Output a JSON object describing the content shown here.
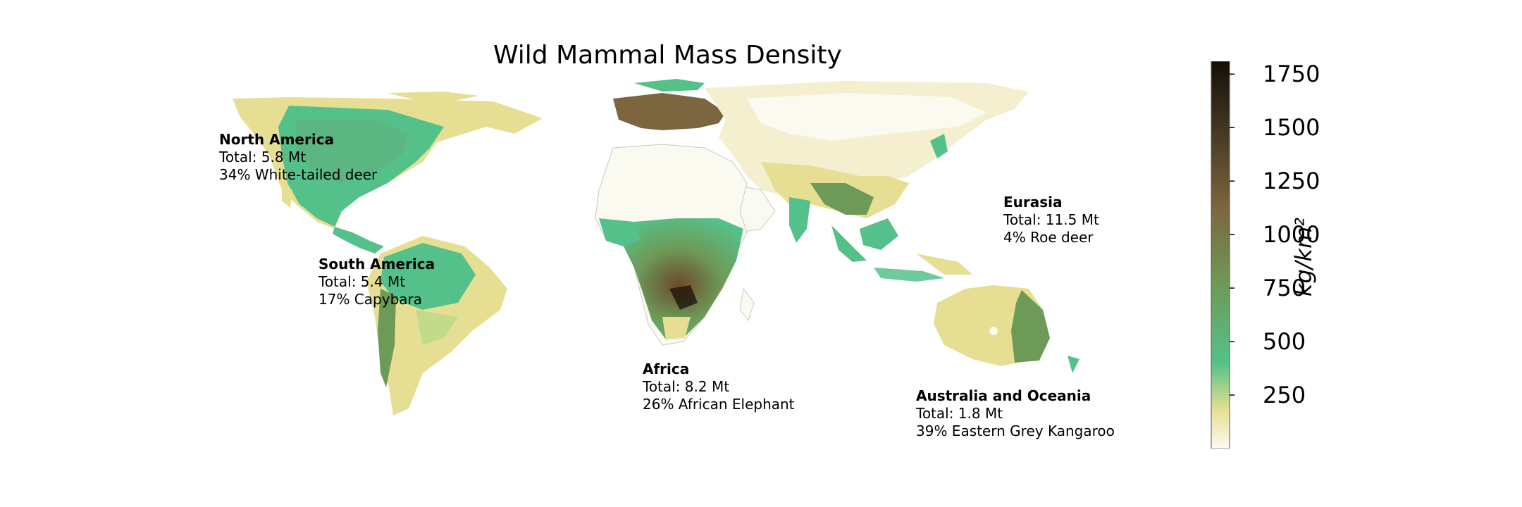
{
  "title": "Wild Mammal Mass Density",
  "colors": {
    "scale": [
      "#fbfaf0",
      "#e6df93",
      "#55c18a",
      "#6e9a58",
      "#7c6640",
      "#140f08"
    ],
    "land_base": "#f7f4e0",
    "ocean": "#ffffff",
    "coastline": "#9a9a9a"
  },
  "regions": [
    {
      "name": "North America",
      "total": "Total: 5.8 Mt",
      "species": "34% White-tailed deer"
    },
    {
      "name": "South America",
      "total": "Total: 5.4 Mt",
      "species": "17% Capybara"
    },
    {
      "name": "Africa",
      "total": "Total: 8.2 Mt",
      "species": "26% African Elephant"
    },
    {
      "name": "Eurasia",
      "total": "Total: 11.5 Mt",
      "species": "4% Roe deer"
    },
    {
      "name": "Australia and Oceania",
      "total": "Total: 1.8 Mt",
      "species": "39% Eastern Grey Kangaroo"
    }
  ],
  "colorbar": {
    "label": "kg/km²",
    "min": 0,
    "max": 1810,
    "ticks": [
      {
        "value": 250,
        "label": "250"
      },
      {
        "value": 500,
        "label": "500"
      },
      {
        "value": 750,
        "label": "750"
      },
      {
        "value": 1000,
        "label": "1000"
      },
      {
        "value": 1250,
        "label": "1250"
      },
      {
        "value": 1500,
        "label": "1500"
      },
      {
        "value": 1750,
        "label": "1750"
      }
    ]
  }
}
